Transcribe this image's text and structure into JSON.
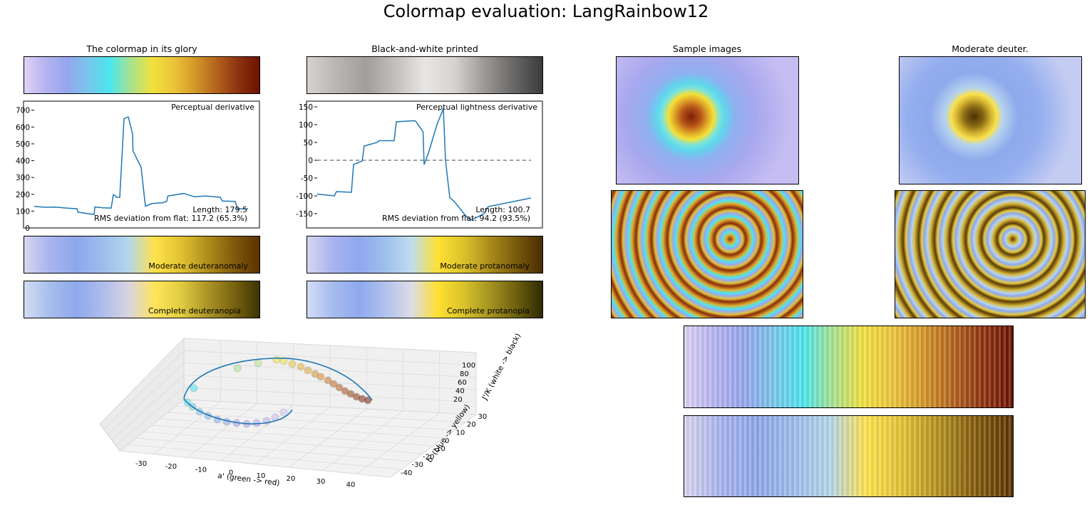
{
  "suptitle": "Colormap evaluation: LangRainbow12",
  "panels": {
    "glory_title": "The colormap in its glory",
    "bw_title": "Black-and-white printed",
    "sample_title": "Sample images",
    "deuter_title": "Moderate deuter.",
    "deuteranomaly": "Moderate deuteranomaly",
    "protanomaly": "Moderate protanomaly",
    "deuteranopia": "Complete deuteranopia",
    "protanopia": "Complete protanopia"
  },
  "colors": {
    "glory": [
      "#e0d2f5",
      "#b4b4f0",
      "#96a5ee",
      "#78c6ec",
      "#4be6ee",
      "#aae28c",
      "#f2e13c",
      "#ecc43a",
      "#d39728",
      "#b3621c",
      "#8e3210",
      "#6c1200"
    ],
    "bw": [
      "#d6d3d0",
      "#b8b5b2",
      "#a19e9c",
      "#c2bfbc",
      "#e8e6e4",
      "#d6d3d0",
      "#9d9a98",
      "#6a6867",
      "#3b3b3d"
    ],
    "deuteranomaly": [
      "#d8d6f0",
      "#a7b4ee",
      "#8ea7ec",
      "#9dbdec",
      "#b4d6ea",
      "#ffe24a",
      "#e1c132",
      "#b18e1c",
      "#835a0c",
      "#5a3300"
    ],
    "protanomaly": [
      "#d7d6f1",
      "#a8b3ee",
      "#8ea8ed",
      "#9ec0ec",
      "#c1dcee",
      "#ffe133",
      "#dcc12c",
      "#a98b1a",
      "#7a5a0c",
      "#4a2c00"
    ],
    "deuteranopia": [
      "#d2ddf0",
      "#a6bced",
      "#8ea9ec",
      "#aebcec",
      "#d8d4e0",
      "#ffe45a",
      "#e0cc42",
      "#ad9526",
      "#7a6410",
      "#3c3404"
    ],
    "protanopia": [
      "#d2dcf3",
      "#a6bbef",
      "#8ea9ee",
      "#b1c2ec",
      "#dcdce6",
      "#ffe030",
      "#d8c22c",
      "#a49320",
      "#6e600e",
      "#2e2a02"
    ],
    "line": "#1f77b4"
  },
  "chart_data": [
    {
      "type": "line",
      "title": "Perceptual derivative",
      "ylim": [
        0,
        720
      ],
      "yticks": [
        "0",
        "100",
        "200",
        "300",
        "400",
        "500",
        "600",
        "700"
      ],
      "x": [
        0,
        0.05,
        0.1,
        0.15,
        0.2,
        0.204,
        0.25,
        0.28,
        0.284,
        0.32,
        0.36,
        0.37,
        0.38,
        0.385,
        0.4,
        0.42,
        0.44,
        0.46,
        0.462,
        0.5,
        0.52,
        0.55,
        0.6,
        0.62,
        0.625,
        0.7,
        0.75,
        0.8,
        0.87,
        0.88,
        0.94,
        0.95,
        1.0
      ],
      "values": [
        128,
        123,
        124,
        118,
        114,
        94,
        85,
        80,
        125,
        120,
        118,
        198,
        190,
        182,
        182,
        650,
        660,
        560,
        458,
        360,
        129,
        145,
        150,
        158,
        190,
        205,
        185,
        190,
        182,
        160,
        158,
        113,
        113
      ],
      "annotations": [
        "Length: 179.5",
        "RMS deviation from flat: 117.2 (65.3%)"
      ]
    },
    {
      "type": "line",
      "title": "Perceptual lightness derivative",
      "ylim": [
        -190,
        160
      ],
      "yticks": [
        "150",
        "100",
        "50",
        "0",
        "-50",
        "-100",
        "-150"
      ],
      "hline": 0,
      "x": [
        0,
        0.08,
        0.09,
        0.16,
        0.17,
        0.21,
        0.22,
        0.28,
        0.29,
        0.36,
        0.37,
        0.45,
        0.46,
        0.495,
        0.5,
        0.52,
        0.54,
        0.56,
        0.59,
        0.6,
        0.62,
        0.64,
        0.68,
        0.7,
        0.72,
        0.78,
        0.8,
        1.0
      ],
      "values": [
        -95,
        -100,
        -88,
        -90,
        -12,
        -2,
        40,
        50,
        55,
        55,
        108,
        111,
        110,
        80,
        -12,
        20,
        60,
        100,
        145,
        0,
        -105,
        -115,
        -145,
        -160,
        -168,
        -150,
        -130,
        -106
      ],
      "annotations": [
        "Length: 100.7",
        "RMS deviation from flat: 94.2 (93.5%)"
      ]
    },
    {
      "type": "scatter",
      "xlabel": "a' (green -> red)",
      "ylabel": "b' (blue -> yellow)",
      "zlabel": "J'/K (white -> black)",
      "xticks": [
        "-30",
        "-20",
        "-10",
        "0",
        "10",
        "20",
        "30",
        "40"
      ],
      "yticks": [
        "-40",
        "-30",
        "-20",
        "-10",
        "0",
        "10",
        "20",
        "30"
      ],
      "zticks": [
        "20",
        "40",
        "60",
        "80",
        "100"
      ]
    }
  ]
}
